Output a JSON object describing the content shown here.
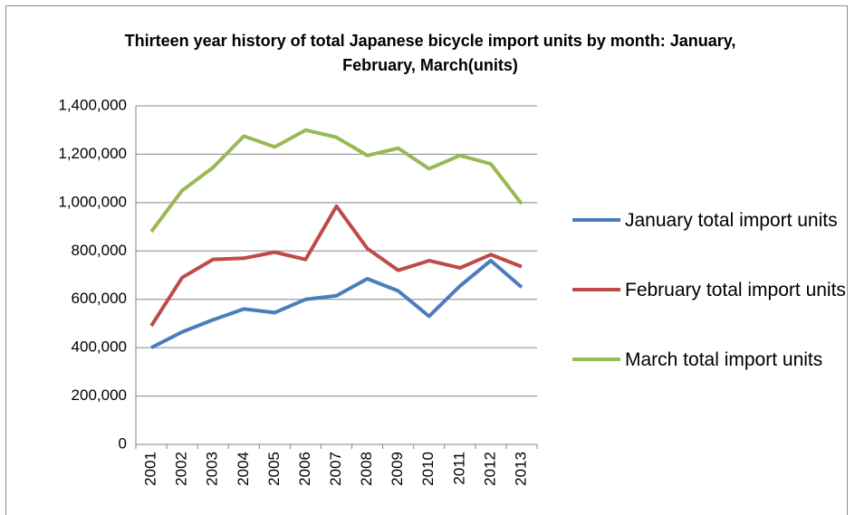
{
  "chart_data": {
    "type": "line",
    "title": "Thirteen year history of total Japanese bicycle import units by month: January, February, March(units)",
    "categories": [
      "2001",
      "2002",
      "2003",
      "2004",
      "2005",
      "2006",
      "2007",
      "2008",
      "2009",
      "2010",
      "2011",
      "2012",
      "2013"
    ],
    "series": [
      {
        "name": "January total import units",
        "color": "#4a7ebb",
        "values": [
          400000,
          465000,
          515000,
          560000,
          545000,
          600000,
          615000,
          685000,
          635000,
          530000,
          655000,
          760000,
          650000
        ]
      },
      {
        "name": "February total import units",
        "color": "#be4b48",
        "values": [
          490000,
          690000,
          765000,
          770000,
          795000,
          765000,
          985000,
          810000,
          720000,
          760000,
          730000,
          785000,
          735000
        ]
      },
      {
        "name": "March total import units",
        "color": "#98b954",
        "values": [
          880000,
          1050000,
          1145000,
          1275000,
          1230000,
          1300000,
          1270000,
          1195000,
          1225000,
          1140000,
          1195000,
          1160000,
          995000
        ]
      }
    ],
    "ylim": [
      0,
      1400000
    ],
    "yticks": [
      0,
      {
        "value": 200000,
        "label": "200,000"
      },
      {
        "value": 400000,
        "label": "400,000"
      },
      {
        "value": 600000,
        "label": "600,000"
      },
      {
        "value": 800000,
        "label": "800,000"
      },
      {
        "value": 1000000,
        "label": "1,000,000"
      },
      {
        "value": 1200000,
        "label": "1,200,000"
      },
      {
        "value": 1400000,
        "label": "1,400,000"
      }
    ],
    "grid": true,
    "legend": "right"
  }
}
